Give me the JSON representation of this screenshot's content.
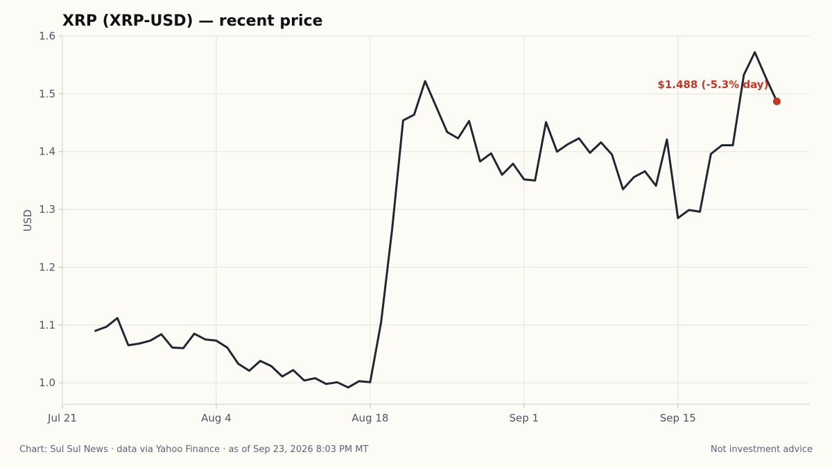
{
  "chart_data": {
    "type": "line",
    "title": "XRP (XRP-USD) — recent price",
    "xlabel": "",
    "ylabel": "USD",
    "ylim": [
      0.963,
      1.6
    ],
    "yticks": [
      1.0,
      1.1,
      1.2,
      1.3,
      1.4,
      1.5,
      1.6
    ],
    "ytick_labels": [
      "1.0",
      "1.1",
      "1.2",
      "1.3",
      "1.4",
      "1.5",
      "1.6"
    ],
    "xlim": [
      "2026-07-21",
      "2026-09-27"
    ],
    "xticks": [
      "2026-07-21",
      "2026-08-04",
      "2026-08-18",
      "2026-09-01",
      "2026-09-15"
    ],
    "xtick_labels": [
      "Jul 21",
      "Aug 4",
      "Aug 18",
      "Sep 1",
      "Sep 15"
    ],
    "grid": true,
    "line_color": "#222630",
    "series": [
      {
        "name": "",
        "x": [
          "2026-07-24",
          "2026-07-25",
          "2026-07-26",
          "2026-07-27",
          "2026-07-28",
          "2026-07-29",
          "2026-07-30",
          "2026-07-31",
          "2026-08-01",
          "2026-08-02",
          "2026-08-03",
          "2026-08-04",
          "2026-08-05",
          "2026-08-06",
          "2026-08-07",
          "2026-08-08",
          "2026-08-09",
          "2026-08-10",
          "2026-08-11",
          "2026-08-12",
          "2026-08-13",
          "2026-08-14",
          "2026-08-15",
          "2026-08-16",
          "2026-08-17",
          "2026-08-18",
          "2026-08-19",
          "2026-08-20",
          "2026-08-21",
          "2026-08-22",
          "2026-08-23",
          "2026-08-24",
          "2026-08-25",
          "2026-08-26",
          "2026-08-27",
          "2026-08-28",
          "2026-08-29",
          "2026-08-30",
          "2026-08-31",
          "2026-09-01",
          "2026-09-02",
          "2026-09-03",
          "2026-09-04",
          "2026-09-05",
          "2026-09-06",
          "2026-09-07",
          "2026-09-08",
          "2026-09-09",
          "2026-09-10",
          "2026-09-11",
          "2026-09-12",
          "2026-09-13",
          "2026-09-14",
          "2026-09-15",
          "2026-09-16",
          "2026-09-17",
          "2026-09-18",
          "2026-09-19",
          "2026-09-20",
          "2026-09-21",
          "2026-09-22",
          "2026-09-23",
          "2026-09-24"
        ],
        "values": [
          1.09,
          1.097,
          1.112,
          1.065,
          1.068,
          1.073,
          1.084,
          1.061,
          1.06,
          1.085,
          1.075,
          1.073,
          1.061,
          1.033,
          1.021,
          1.038,
          1.029,
          1.011,
          1.022,
          1.004,
          1.008,
          0.998,
          1.001,
          0.992,
          1.003,
          1.001,
          1.105,
          1.266,
          1.454,
          1.464,
          1.522,
          1.478,
          1.434,
          1.423,
          1.453,
          1.383,
          1.397,
          1.36,
          1.379,
          1.352,
          1.35,
          1.451,
          1.4,
          1.413,
          1.423,
          1.398,
          1.416,
          1.395,
          1.335,
          1.356,
          1.366,
          1.341,
          1.421,
          1.285,
          1.299,
          1.296,
          1.396,
          1.411,
          1.411,
          1.533,
          1.572,
          1.528,
          1.487
        ]
      }
    ],
    "annotation": {
      "text": "$1.488  (-5.3% day)",
      "color": "#c0392b"
    }
  },
  "footer": {
    "left": "Chart: Sul Sul News · data via Yahoo Finance · as of Sep 23, 2026 8:03 PM MT",
    "right": "Not investment advice"
  }
}
